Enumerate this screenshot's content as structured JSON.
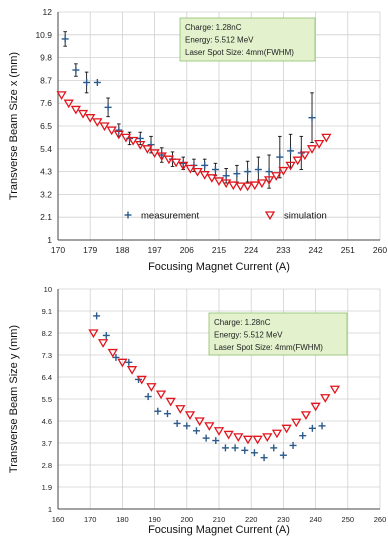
{
  "colors": {
    "measurement": "#2c5a8a",
    "simulation": "#e0161e",
    "info_box_fill": "#e3f2cd",
    "info_box_stroke": "#8fc06e",
    "grid": "#d0d0d0"
  },
  "chart_data": [
    {
      "type": "scatter",
      "xlabel": "Focusing Magnet Current (A)",
      "ylabel": "Transverse Beam Size x (mm)",
      "xlim": [
        170,
        260
      ],
      "ylim": [
        1,
        12
      ],
      "xticks": [
        170,
        179,
        188,
        197,
        206,
        215,
        224,
        233,
        242,
        251,
        260
      ],
      "yticks": [
        1,
        2.1,
        3.2,
        4.3,
        5.4,
        6.5,
        7.6,
        8.7,
        9.8,
        10.9,
        12
      ],
      "xtick_labels": [
        "170",
        "179",
        "188",
        "197",
        "206",
        "215",
        "224",
        "233",
        "242",
        "251",
        "260"
      ],
      "ytick_labels": [
        "1",
        "2.1",
        "3.2",
        "4.3",
        "5.4",
        "6.5",
        "7.6",
        "8.7",
        "9.8",
        "10.9",
        "12"
      ],
      "grid": true,
      "legend_position": "bottom",
      "legend": [
        "measurement",
        "simulation"
      ],
      "info_box": [
        "Charge: 1.28nC",
        "Energy: 5.512 MeV",
        "Laser Spot Size: 4mm(FWHM)"
      ],
      "series": [
        {
          "name": "measurement",
          "marker": "plus",
          "x": [
            172,
            175,
            178,
            181,
            184,
            187,
            190,
            193,
            196,
            199,
            202,
            205,
            208,
            211,
            214,
            217,
            220,
            223,
            226,
            229,
            232,
            235,
            238,
            241
          ],
          "y": [
            10.7,
            9.2,
            8.6,
            8.6,
            7.4,
            6.3,
            5.9,
            5.9,
            5.6,
            5.1,
            4.9,
            4.7,
            4.6,
            4.6,
            4.4,
            4.1,
            4.2,
            4.3,
            4.4,
            4.3,
            5.0,
            5.3,
            5.2,
            6.9
          ],
          "yerr": [
            0.35,
            0.3,
            0.5,
            0,
            0.45,
            0.3,
            0.3,
            0.3,
            0.4,
            0.35,
            0.35,
            0.3,
            0.3,
            0.3,
            0.3,
            0.35,
            0.4,
            0.5,
            0.6,
            0.8,
            1.0,
            0.8,
            0.8,
            1.2
          ]
        },
        {
          "name": "simulation",
          "marker": "triangle-down",
          "x": [
            171,
            173,
            175,
            177,
            179,
            181,
            183,
            185,
            187,
            189,
            191,
            193,
            195,
            197,
            199,
            201,
            203,
            205,
            207,
            209,
            211,
            213,
            215,
            217,
            219,
            221,
            223,
            225,
            227,
            229,
            231,
            233,
            235,
            237,
            239,
            241,
            243,
            245
          ],
          "y": [
            8.0,
            7.6,
            7.3,
            7.1,
            6.9,
            6.7,
            6.5,
            6.3,
            6.1,
            5.95,
            5.8,
            5.6,
            5.4,
            5.2,
            5.05,
            4.9,
            4.75,
            4.6,
            4.45,
            4.3,
            4.15,
            4.0,
            3.85,
            3.75,
            3.65,
            3.6,
            3.6,
            3.65,
            3.75,
            3.9,
            4.1,
            4.35,
            4.6,
            4.85,
            5.1,
            5.4,
            5.65,
            5.95
          ]
        }
      ]
    },
    {
      "type": "scatter",
      "xlabel": "Focusing Magnet Current (A)",
      "ylabel": "Transverse Beam Size y (mm)",
      "xlim": [
        160,
        260
      ],
      "ylim": [
        1,
        10
      ],
      "xticks": [
        160,
        170,
        180,
        190,
        200,
        210,
        220,
        230,
        240,
        250,
        260
      ],
      "yticks": [
        1,
        1.9,
        2.8,
        3.7,
        4.6,
        5.5,
        6.4,
        7.3,
        8.2,
        9.1,
        10
      ],
      "xtick_labels": [
        "160",
        "170",
        "180",
        "190",
        "200",
        "210",
        "220",
        "230",
        "240",
        "250",
        "260"
      ],
      "ytick_labels": [
        "1",
        "1.9",
        "2.8",
        "3.7",
        "4.6",
        "5.5",
        "6.4",
        "7.3",
        "8.2",
        "9.1",
        "10"
      ],
      "grid": true,
      "info_box": [
        "Charge: 1.28nC",
        "Energy: 5.512 MeV",
        "Laser Spot Size: 4mm(FWHM)"
      ],
      "series": [
        {
          "name": "measurement",
          "marker": "plus",
          "x": [
            172,
            175,
            178,
            182,
            185,
            188,
            191,
            194,
            197,
            200,
            203,
            206,
            209,
            212,
            215,
            218,
            221,
            224,
            227,
            230,
            233,
            236,
            239,
            242
          ],
          "y": [
            8.9,
            8.1,
            7.2,
            7.0,
            6.3,
            5.6,
            5.0,
            4.9,
            4.5,
            4.4,
            4.2,
            3.9,
            3.8,
            3.5,
            3.5,
            3.4,
            3.3,
            3.1,
            3.5,
            3.2,
            3.6,
            4.0,
            4.3,
            4.4
          ]
        },
        {
          "name": "simulation",
          "marker": "triangle-down",
          "x": [
            171,
            174,
            177,
            180,
            183,
            186,
            189,
            192,
            195,
            198,
            201,
            204,
            207,
            210,
            213,
            216,
            219,
            222,
            225,
            228,
            231,
            234,
            237,
            240,
            243,
            246
          ],
          "y": [
            8.2,
            7.8,
            7.4,
            7.0,
            6.7,
            6.3,
            6.0,
            5.7,
            5.4,
            5.1,
            4.85,
            4.6,
            4.4,
            4.2,
            4.05,
            3.95,
            3.85,
            3.85,
            3.95,
            4.1,
            4.3,
            4.55,
            4.85,
            5.2,
            5.55,
            5.9
          ]
        }
      ]
    }
  ]
}
